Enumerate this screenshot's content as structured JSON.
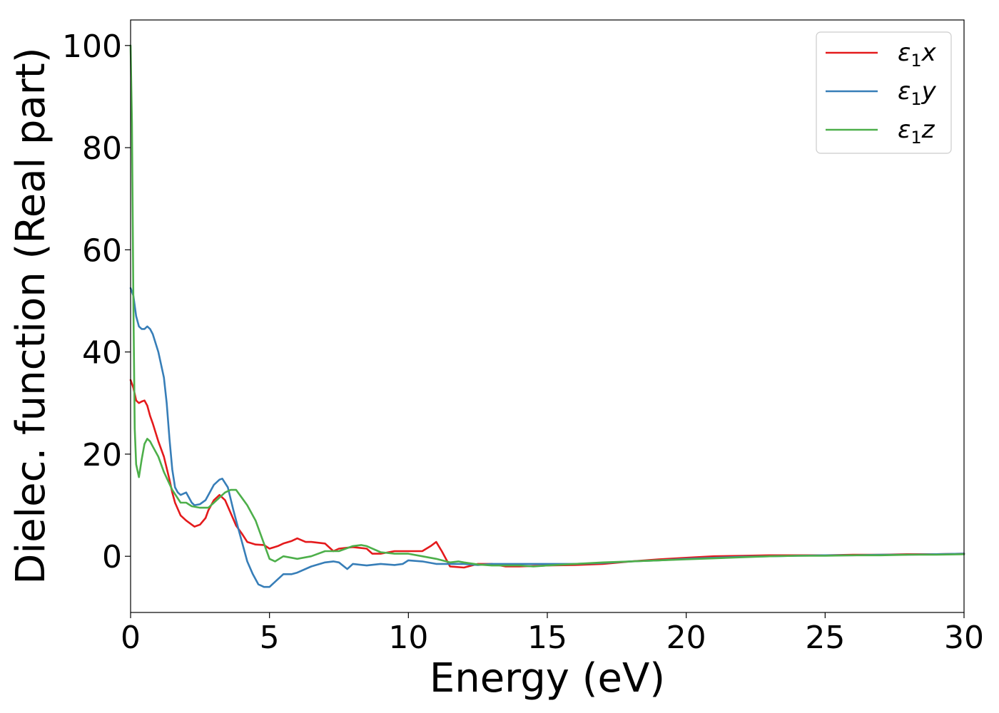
{
  "chart_data": {
    "type": "line",
    "title": "",
    "xlabel": "Energy (eV)",
    "ylabel": "Dielec. function (Real part)",
    "xlim": [
      0,
      30
    ],
    "ylim": [
      -11,
      105
    ],
    "xticks": [
      0,
      5,
      10,
      15,
      20,
      25,
      30
    ],
    "yticks": [
      0,
      20,
      40,
      60,
      80,
      100
    ],
    "grid": false,
    "legend_position": "top-right",
    "series": [
      {
        "name": "ε1x",
        "legend_base": "ε",
        "legend_sub": "1",
        "legend_suffix": "x",
        "color": "#e41a1c",
        "x": [
          0,
          0.1,
          0.2,
          0.3,
          0.4,
          0.5,
          0.6,
          0.7,
          0.8,
          1.0,
          1.2,
          1.4,
          1.5,
          1.6,
          1.8,
          2.0,
          2.2,
          2.3,
          2.5,
          2.7,
          2.8,
          3.0,
          3.2,
          3.4,
          3.6,
          3.8,
          4.0,
          4.2,
          4.5,
          4.8,
          5.0,
          5.3,
          5.5,
          5.8,
          6.0,
          6.3,
          6.5,
          7.0,
          7.3,
          7.5,
          8.0,
          8.5,
          8.7,
          9.0,
          9.5,
          10.0,
          10.5,
          10.8,
          11.0,
          11.2,
          11.5,
          12.0,
          12.5,
          13.0,
          13.5,
          14.0,
          15.0,
          16.0,
          17.0,
          18.0,
          19.0,
          20.0,
          21.0,
          22.0,
          23.0,
          24.0,
          25.0,
          26.0,
          27.0,
          28.0,
          29.0,
          30.0
        ],
        "y": [
          34.5,
          33,
          30.5,
          30,
          30.3,
          30.5,
          29.5,
          27.5,
          26,
          22.5,
          19.5,
          15,
          12.5,
          10.5,
          8,
          7,
          6.2,
          5.8,
          6.2,
          7.5,
          9,
          11,
          12,
          11,
          8.5,
          6,
          4.5,
          2.8,
          2.3,
          2.2,
          1.5,
          2.0,
          2.5,
          3.0,
          3.5,
          2.8,
          2.8,
          2.5,
          1.0,
          1.5,
          1.8,
          1.5,
          0.5,
          0.5,
          1.0,
          1.0,
          1.0,
          2.0,
          2.8,
          1.0,
          -2.0,
          -2.2,
          -1.5,
          -1.5,
          -2.0,
          -2.0,
          -1.8,
          -1.7,
          -1.5,
          -1.0,
          -0.6,
          -0.3,
          0.0,
          0.1,
          0.2,
          0.2,
          0.2,
          0.3,
          0.3,
          0.4,
          0.4,
          0.5
        ]
      },
      {
        "name": "ε1y",
        "legend_base": "ε",
        "legend_sub": "1",
        "legend_suffix": "y",
        "color": "#377eb8",
        "x": [
          0,
          0.1,
          0.2,
          0.3,
          0.4,
          0.5,
          0.6,
          0.7,
          0.8,
          1.0,
          1.2,
          1.3,
          1.4,
          1.5,
          1.6,
          1.7,
          1.8,
          2.0,
          2.2,
          2.3,
          2.5,
          2.7,
          2.8,
          3.0,
          3.2,
          3.3,
          3.5,
          3.7,
          3.9,
          4.0,
          4.2,
          4.4,
          4.6,
          4.8,
          5.0,
          5.3,
          5.5,
          5.8,
          6.0,
          6.5,
          7.0,
          7.3,
          7.5,
          7.8,
          8.0,
          8.5,
          9.0,
          9.5,
          9.8,
          10.0,
          10.5,
          11.0,
          11.5,
          12.0,
          12.5,
          13.0,
          14.0,
          15.0,
          16.0,
          17.0,
          18.0,
          19.0,
          20.0,
          21.0,
          22.0,
          23.0,
          24.0,
          25.0,
          26.0,
          27.0,
          28.0,
          29.0,
          30.0
        ],
        "y": [
          52.5,
          51,
          47,
          45,
          44.5,
          44.5,
          45,
          44.5,
          43.5,
          40,
          35,
          30,
          23,
          17,
          13.5,
          12.5,
          12,
          12.5,
          10.5,
          10,
          10.2,
          11,
          12,
          14,
          15,
          15.2,
          13.5,
          9,
          5,
          3,
          -1,
          -3.5,
          -5.5,
          -6,
          -6,
          -4.5,
          -3.5,
          -3.5,
          -3.2,
          -2.0,
          -1.2,
          -1.0,
          -1.2,
          -2.5,
          -1.5,
          -1.8,
          -1.5,
          -1.7,
          -1.5,
          -0.8,
          -1.0,
          -1.5,
          -1.5,
          -1.5,
          -1.7,
          -1.5,
          -1.5,
          -1.5,
          -1.5,
          -1.3,
          -1.0,
          -0.8,
          -0.5,
          -0.3,
          -0.1,
          0.0,
          0.1,
          0.2,
          0.2,
          0.3,
          0.3,
          0.4,
          0.5
        ]
      },
      {
        "name": "ε1z",
        "legend_base": "ε",
        "legend_sub": "1",
        "legend_suffix": "z",
        "color": "#4daf4a",
        "x": [
          0,
          0.05,
          0.1,
          0.15,
          0.2,
          0.3,
          0.4,
          0.5,
          0.6,
          0.7,
          0.8,
          1.0,
          1.2,
          1.5,
          1.8,
          2.0,
          2.2,
          2.5,
          2.8,
          3.0,
          3.2,
          3.4,
          3.6,
          3.8,
          4.0,
          4.2,
          4.5,
          4.8,
          5.0,
          5.2,
          5.5,
          5.8,
          6.0,
          6.5,
          7.0,
          7.5,
          8.0,
          8.3,
          8.5,
          9.0,
          9.5,
          10.0,
          10.5,
          11.0,
          11.5,
          11.8,
          12.0,
          12.5,
          13.0,
          14.0,
          14.5,
          15.0,
          16.0,
          17.0,
          18.0,
          19.0,
          20.0,
          21.0,
          22.0,
          23.0,
          24.0,
          25.0,
          26.0,
          27.0,
          28.0,
          29.0,
          30.0
        ],
        "y": [
          100,
          85,
          50,
          25,
          18,
          15.5,
          19,
          22,
          23,
          22.5,
          21.5,
          19.5,
          16.5,
          13,
          10.5,
          10.5,
          9.8,
          9.5,
          9.5,
          10.5,
          11.5,
          12.5,
          13,
          13,
          11.5,
          10,
          7,
          2.5,
          -0.5,
          -1.0,
          0.0,
          -0.3,
          -0.5,
          0.0,
          1.0,
          1.0,
          2.0,
          2.2,
          2.0,
          0.8,
          0.5,
          0.5,
          0.0,
          -0.5,
          -1.2,
          -1.0,
          -1.2,
          -1.6,
          -1.8,
          -1.8,
          -2.0,
          -1.8,
          -1.5,
          -1.2,
          -1.0,
          -0.8,
          -0.6,
          -0.4,
          -0.2,
          0.0,
          0.1,
          0.1,
          0.2,
          0.2,
          0.3,
          0.3,
          0.4
        ]
      }
    ]
  }
}
